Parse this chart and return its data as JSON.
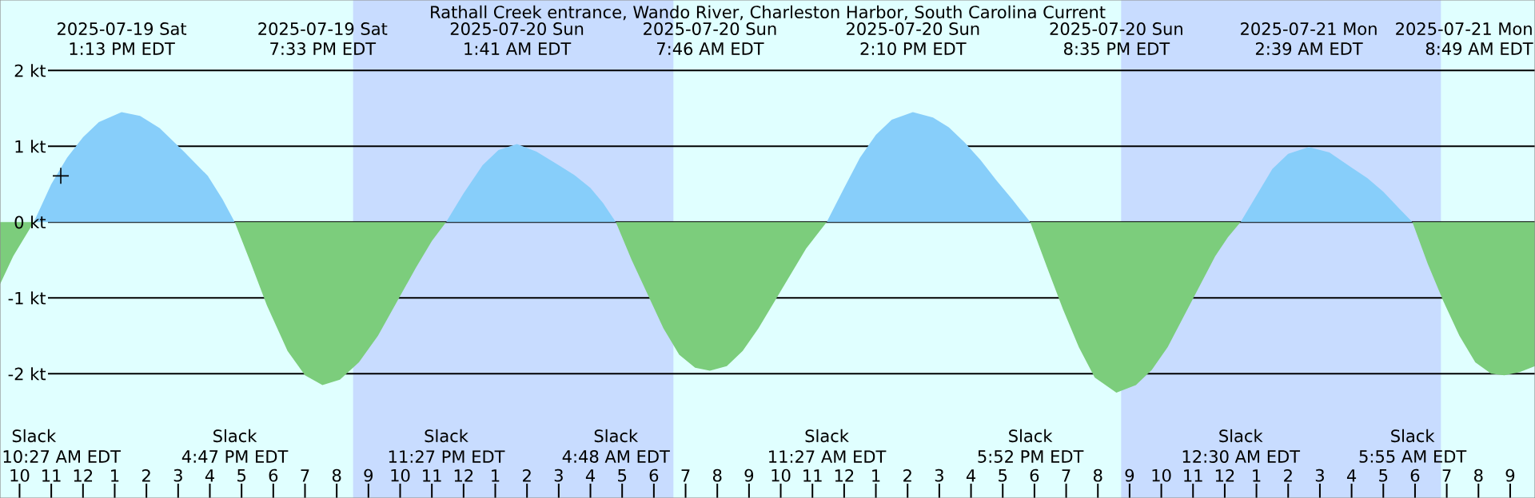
{
  "chart_data": {
    "type": "area",
    "title": "Rathall Creek entrance, Wando River, Charleston Harbor, South Carolina Current",
    "xticks": [
      {
        "value": "2025-07-19T10:00",
        "label": "10"
      },
      {
        "value": "2025-07-19T11:00",
        "label": "11"
      },
      {
        "value": "2025-07-19T12:00",
        "label": "12"
      },
      {
        "value": "2025-07-19T13:00",
        "label": "1"
      },
      {
        "value": "2025-07-19T14:00",
        "label": "2"
      },
      {
        "value": "2025-07-19T15:00",
        "label": "3"
      },
      {
        "value": "2025-07-19T16:00",
        "label": "4"
      },
      {
        "value": "2025-07-19T17:00",
        "label": "5"
      },
      {
        "value": "2025-07-19T18:00",
        "label": "6"
      },
      {
        "value": "2025-07-19T19:00",
        "label": "7"
      },
      {
        "value": "2025-07-19T20:00",
        "label": "8"
      },
      {
        "value": "2025-07-19T21:00",
        "label": "9"
      },
      {
        "value": "2025-07-19T22:00",
        "label": "10"
      },
      {
        "value": "2025-07-19T23:00",
        "label": "11"
      },
      {
        "value": "2025-07-20T00:00",
        "label": "12"
      },
      {
        "value": "2025-07-20T01:00",
        "label": "1"
      },
      {
        "value": "2025-07-20T02:00",
        "label": "2"
      },
      {
        "value": "2025-07-20T03:00",
        "label": "3"
      },
      {
        "value": "2025-07-20T04:00",
        "label": "4"
      },
      {
        "value": "2025-07-20T05:00",
        "label": "5"
      },
      {
        "value": "2025-07-20T06:00",
        "label": "6"
      },
      {
        "value": "2025-07-20T07:00",
        "label": "7"
      },
      {
        "value": "2025-07-20T08:00",
        "label": "8"
      },
      {
        "value": "2025-07-20T09:00",
        "label": "9"
      },
      {
        "value": "2025-07-20T10:00",
        "label": "10"
      },
      {
        "value": "2025-07-20T11:00",
        "label": "11"
      },
      {
        "value": "2025-07-20T12:00",
        "label": "12"
      },
      {
        "value": "2025-07-20T13:00",
        "label": "1"
      },
      {
        "value": "2025-07-20T14:00",
        "label": "2"
      },
      {
        "value": "2025-07-20T15:00",
        "label": "3"
      },
      {
        "value": "2025-07-20T16:00",
        "label": "4"
      },
      {
        "value": "2025-07-20T17:00",
        "label": "5"
      },
      {
        "value": "2025-07-20T18:00",
        "label": "6"
      },
      {
        "value": "2025-07-20T19:00",
        "label": "7"
      },
      {
        "value": "2025-07-20T20:00",
        "label": "8"
      },
      {
        "value": "2025-07-20T21:00",
        "label": "9"
      },
      {
        "value": "2025-07-20T22:00",
        "label": "10"
      },
      {
        "value": "2025-07-20T23:00",
        "label": "11"
      },
      {
        "value": "2025-07-21T00:00",
        "label": "12"
      },
      {
        "value": "2025-07-21T01:00",
        "label": "1"
      },
      {
        "value": "2025-07-21T02:00",
        "label": "2"
      },
      {
        "value": "2025-07-21T03:00",
        "label": "3"
      },
      {
        "value": "2025-07-21T04:00",
        "label": "4"
      },
      {
        "value": "2025-07-21T05:00",
        "label": "5"
      },
      {
        "value": "2025-07-21T06:00",
        "label": "6"
      },
      {
        "value": "2025-07-21T07:00",
        "label": "7"
      },
      {
        "value": "2025-07-21T08:00",
        "label": "8"
      },
      {
        "value": "2025-07-21T09:00",
        "label": "9"
      }
    ],
    "xlim": [
      "2025-07-19T09:23",
      "2025-07-21T09:47"
    ],
    "ylim": [
      -3.64,
      2.93
    ],
    "yticks": [
      {
        "value": 2,
        "label": "2 kt"
      },
      {
        "value": 1,
        "label": "1 kt"
      },
      {
        "value": 0,
        "label": "0 kt"
      },
      {
        "value": -1,
        "label": "-1 kt"
      },
      {
        "value": -2,
        "label": "-2 kt"
      }
    ],
    "grid": "y",
    "bands": [
      {
        "axis": "x",
        "from": "2025-07-19T20:31",
        "to": "2025-07-20T06:37",
        "color": "#c8dcff"
      },
      {
        "axis": "x",
        "from": "2025-07-20T20:44",
        "to": "2025-07-21T06:49",
        "color": "#c8dcff"
      }
    ],
    "series": [
      {
        "color": "#87cefa",
        "x": [
          "2025-07-19T10:27",
          "2025-07-19T11:00",
          "2025-07-19T11:30",
          "2025-07-19T12:00",
          "2025-07-19T12:30",
          "2025-07-19T13:13",
          "2025-07-19T13:48",
          "2025-07-19T14:25",
          "2025-07-19T15:11",
          "2025-07-19T15:56",
          "2025-07-19T16:24",
          "2025-07-19T16:47",
          "2025-07-19T23:27",
          "2025-07-20T00:00",
          "2025-07-20T00:36",
          "2025-07-20T01:06",
          "2025-07-20T01:41",
          "2025-07-20T02:18",
          "2025-07-20T03:00",
          "2025-07-20T03:30",
          "2025-07-20T04:00",
          "2025-07-20T04:24",
          "2025-07-20T04:48",
          "2025-07-20T11:27",
          "2025-07-20T12:00",
          "2025-07-20T12:30",
          "2025-07-20T13:00",
          "2025-07-20T13:30",
          "2025-07-20T14:10",
          "2025-07-20T14:48",
          "2025-07-20T15:18",
          "2025-07-20T15:48",
          "2025-07-20T16:18",
          "2025-07-20T16:48",
          "2025-07-20T17:18",
          "2025-07-20T17:52",
          "2025-07-21T00:30",
          "2025-07-21T01:00",
          "2025-07-21T01:30",
          "2025-07-21T02:00",
          "2025-07-21T02:39",
          "2025-07-21T03:18",
          "2025-07-21T04:00",
          "2025-07-21T04:30",
          "2025-07-21T05:00",
          "2025-07-21T05:30",
          "2025-07-21T05:55"
        ],
        "values": [
          0,
          0.5,
          0.85,
          1.12,
          1.32,
          1.45,
          1.4,
          1.24,
          0.93,
          0.61,
          0.3,
          0,
          0,
          0.38,
          0.75,
          0.95,
          1.03,
          0.93,
          0.75,
          0.62,
          0.45,
          0.25,
          0,
          0,
          0.45,
          0.85,
          1.15,
          1.35,
          1.45,
          1.38,
          1.25,
          1.05,
          0.82,
          0.55,
          0.3,
          0,
          0,
          0.35,
          0.7,
          0.9,
          0.99,
          0.92,
          0.72,
          0.58,
          0.4,
          0.18,
          0
        ]
      },
      {
        "color": "#7ccd7c",
        "x": [
          "2025-07-19T09:23",
          "2025-07-19T09:48",
          "2025-07-19T10:27",
          "2025-07-19T16:47",
          "2025-07-19T17:18",
          "2025-07-19T17:48",
          "2025-07-19T18:27",
          "2025-07-19T19:00",
          "2025-07-19T19:33",
          "2025-07-19T20:06",
          "2025-07-19T20:42",
          "2025-07-19T21:18",
          "2025-07-19T21:54",
          "2025-07-19T22:30",
          "2025-07-19T23:00",
          "2025-07-19T23:27",
          "2025-07-20T04:48",
          "2025-07-20T05:18",
          "2025-07-20T05:48",
          "2025-07-20T06:18",
          "2025-07-20T06:48",
          "2025-07-20T07:18",
          "2025-07-20T07:46",
          "2025-07-20T08:18",
          "2025-07-20T08:48",
          "2025-07-20T09:18",
          "2025-07-20T09:48",
          "2025-07-20T10:18",
          "2025-07-20T10:48",
          "2025-07-20T11:27",
          "2025-07-20T17:52",
          "2025-07-20T18:24",
          "2025-07-20T18:54",
          "2025-07-20T19:24",
          "2025-07-20T19:54",
          "2025-07-20T20:35",
          "2025-07-20T21:12",
          "2025-07-20T21:42",
          "2025-07-20T22:12",
          "2025-07-20T22:42",
          "2025-07-20T23:12",
          "2025-07-20T23:42",
          "2025-07-21T00:06",
          "2025-07-21T00:30",
          "2025-07-21T05:55",
          "2025-07-21T06:24",
          "2025-07-21T06:54",
          "2025-07-21T07:24",
          "2025-07-21T07:54",
          "2025-07-21T08:24",
          "2025-07-21T08:49",
          "2025-07-21T09:18",
          "2025-07-21T09:47"
        ],
        "values": [
          -0.82,
          -0.45,
          0,
          0,
          -0.55,
          -1.1,
          -1.7,
          -2.02,
          -2.15,
          -2.08,
          -1.85,
          -1.5,
          -1.05,
          -0.6,
          -0.25,
          0,
          0,
          -0.5,
          -0.95,
          -1.4,
          -1.75,
          -1.92,
          -1.96,
          -1.9,
          -1.7,
          -1.4,
          -1.05,
          -0.7,
          -0.35,
          0,
          0,
          -0.6,
          -1.15,
          -1.65,
          -2.05,
          -2.25,
          -2.15,
          -1.95,
          -1.65,
          -1.25,
          -0.85,
          -0.45,
          -0.2,
          0,
          0,
          -0.55,
          -1.05,
          -1.5,
          -1.85,
          -2.0,
          -2.02,
          -1.98,
          -1.9
        ]
      },
      {
        "type": "scatter",
        "color": "#000000",
        "marker": "cross",
        "x": [
          "2025-07-19T11:18"
        ],
        "values": [
          0.61
        ]
      }
    ],
    "annotations": [
      "2025-07-19 Sat",
      "1:13 PM EDT",
      "2025-07-19 Sat",
      "7:33 PM EDT",
      "2025-07-20 Sun",
      "1:41 AM EDT",
      "2025-07-20 Sun",
      "7:46 AM EDT",
      "2025-07-20 Sun",
      "2:10 PM EDT",
      "2025-07-20 Sun",
      "8:35 PM EDT",
      "2025-07-21 Mon",
      "2:39 AM EDT",
      "2025-07-21 Mon",
      "8:49 AM EDT",
      "Slack",
      "10:27 AM EDT",
      "Slack",
      "4:47 PM EDT",
      "Slack",
      "11:27 PM EDT",
      "Slack",
      "4:48 AM EDT",
      "Slack",
      "11:27 AM EDT",
      "Slack",
      "5:52 PM EDT",
      "Slack",
      "12:30 AM EDT",
      "Slack",
      "5:55 AM EDT"
    ]
  }
}
